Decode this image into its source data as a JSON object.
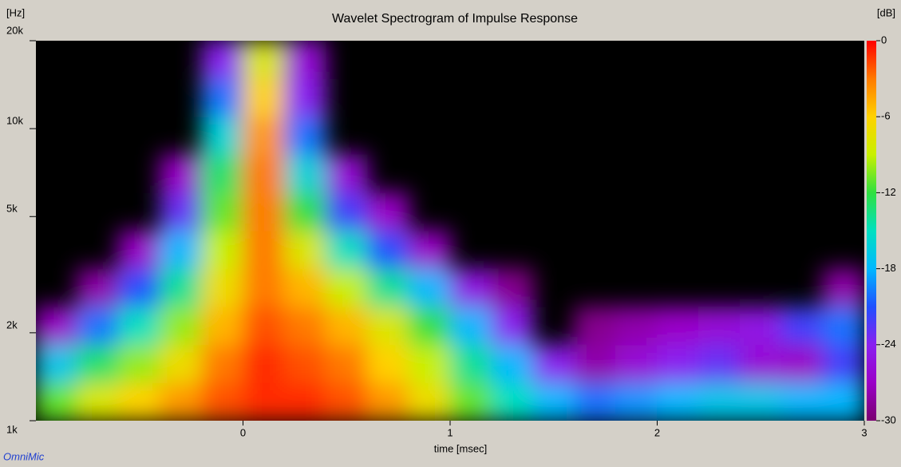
{
  "chart_data": {
    "type": "heatmap",
    "title": "Wavelet Spectrogram of Impulse Response",
    "xlabel": "time [msec]",
    "ylabel": "[Hz]",
    "zlabel": "[dB]",
    "brand": "OmniMic",
    "log_y": true,
    "xlim": [
      -1,
      3
    ],
    "xticks": [
      0,
      1,
      2,
      3
    ],
    "ylim": [
      1000,
      20000
    ],
    "yticks": [
      {
        "value": 1000,
        "label": "1k"
      },
      {
        "value": 2000,
        "label": "2k"
      },
      {
        "value": 5000,
        "label": "5k"
      },
      {
        "value": 10000,
        "label": "10k"
      },
      {
        "value": 20000,
        "label": "20k"
      }
    ],
    "zlim": [
      -30,
      0
    ],
    "zticks": [
      0,
      -6,
      -12,
      -18,
      -24,
      -30
    ],
    "colorscale": [
      "#ff0000",
      "#ff7a00",
      "#ffd200",
      "#c8f000",
      "#30e040",
      "#00e0c0",
      "#00b8ff",
      "#2050ff",
      "#8a20f0",
      "#9a00c8",
      "#7a0070"
    ],
    "x": [
      -1,
      -0.8,
      -0.6,
      -0.4,
      -0.2,
      0,
      0.2,
      0.4,
      0.6,
      0.8,
      1,
      1.2,
      1.4,
      1.6,
      1.8,
      2,
      2.2,
      2.4,
      2.6,
      2.8,
      3
    ],
    "y": [
      1000,
      1349,
      1820,
      2456,
      3314,
      4472,
      6034,
      8142,
      10986,
      14823,
      20000
    ],
    "z": [
      [
        -11,
        -8,
        -6,
        -4,
        -2,
        -1,
        -1,
        -2,
        -4,
        -7,
        -11,
        -15,
        -18,
        -20,
        -19,
        -18,
        -17,
        -17,
        -18,
        -18
      ],
      [
        -17,
        -13,
        -10,
        -7,
        -3,
        -1,
        -2,
        -3,
        -6,
        -9,
        -14,
        -18,
        -24,
        -28,
        -26,
        -24,
        -23,
        -26,
        -27,
        -22
      ],
      [
        -27,
        -20,
        -15,
        -10,
        -5,
        -2,
        -3,
        -5,
        -8,
        -12,
        -18,
        -24,
        null,
        -29,
        -28,
        -27,
        -26,
        -25,
        -22,
        -20
      ],
      [
        null,
        -28,
        -21,
        -14,
        -7,
        -3,
        -5,
        -9,
        -14,
        -18,
        -25,
        -29,
        null,
        null,
        null,
        null,
        null,
        null,
        null,
        -28
      ],
      [
        null,
        null,
        -27,
        -18,
        -9,
        -3,
        -8,
        -15,
        -21,
        -27,
        null,
        null,
        null,
        null,
        null,
        null,
        null,
        null,
        null,
        null
      ],
      [
        null,
        null,
        null,
        -23,
        -11,
        -3,
        -12,
        -22,
        -27,
        null,
        null,
        null,
        null,
        null,
        null,
        null,
        null,
        null,
        null,
        null
      ],
      [
        null,
        null,
        null,
        -27,
        -13,
        -3,
        -16,
        -26,
        null,
        null,
        null,
        null,
        null,
        null,
        null,
        null,
        null,
        null,
        null,
        null
      ],
      [
        null,
        null,
        null,
        null,
        -16,
        -4,
        -20,
        null,
        null,
        null,
        null,
        null,
        null,
        null,
        null,
        null,
        null,
        null,
        null,
        null
      ],
      [
        null,
        null,
        null,
        null,
        -20,
        -6,
        -24,
        null,
        null,
        null,
        null,
        null,
        null,
        null,
        null,
        null,
        null,
        null,
        null,
        null
      ],
      [
        null,
        null,
        null,
        null,
        -24,
        -8,
        -26,
        null,
        null,
        null,
        null,
        null,
        null,
        null,
        null,
        null,
        null,
        null,
        null,
        null
      ]
    ]
  }
}
